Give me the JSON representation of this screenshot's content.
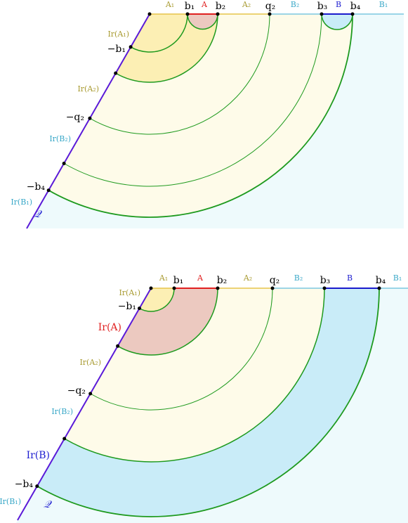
{
  "top": {
    "A1": "A₁",
    "b1": "b₁",
    "A": "A",
    "b2": "b₂",
    "A2": "A₂",
    "q2": "q₂",
    "B2": "B₂",
    "b3": "b₃",
    "B": "B",
    "b4": "b₄",
    "B1": "B₁",
    "IrA1": "Ir(A₁)",
    "mb1": "−b₁",
    "IrA2": "Ir(A₂)",
    "mq2": "−q₂",
    "IrB2": "Ir(B₂)",
    "mb4": "−b₄",
    "IrB1": "Ir(B₁)",
    "Q": "𝒬"
  },
  "bottom": {
    "A1": "A₁",
    "b1": "b₁",
    "A": "A",
    "b2": "b₂",
    "A2": "A₂",
    "q2": "q₂",
    "B2": "B₂",
    "b3": "b₃",
    "B": "B",
    "b4": "b₄",
    "B1": "B₁",
    "IrA1": "Ir(A₁)",
    "mb1": "−b₁",
    "IrA": "Ir(A)",
    "IrA2": "Ir(A₂)",
    "mq2": "−q₂",
    "IrB2": "Ir(B₂)",
    "IrB": "Ir(B)",
    "mb4": "−b₄",
    "IrB1": "Ir(B₁)",
    "Q": "𝒬"
  }
}
